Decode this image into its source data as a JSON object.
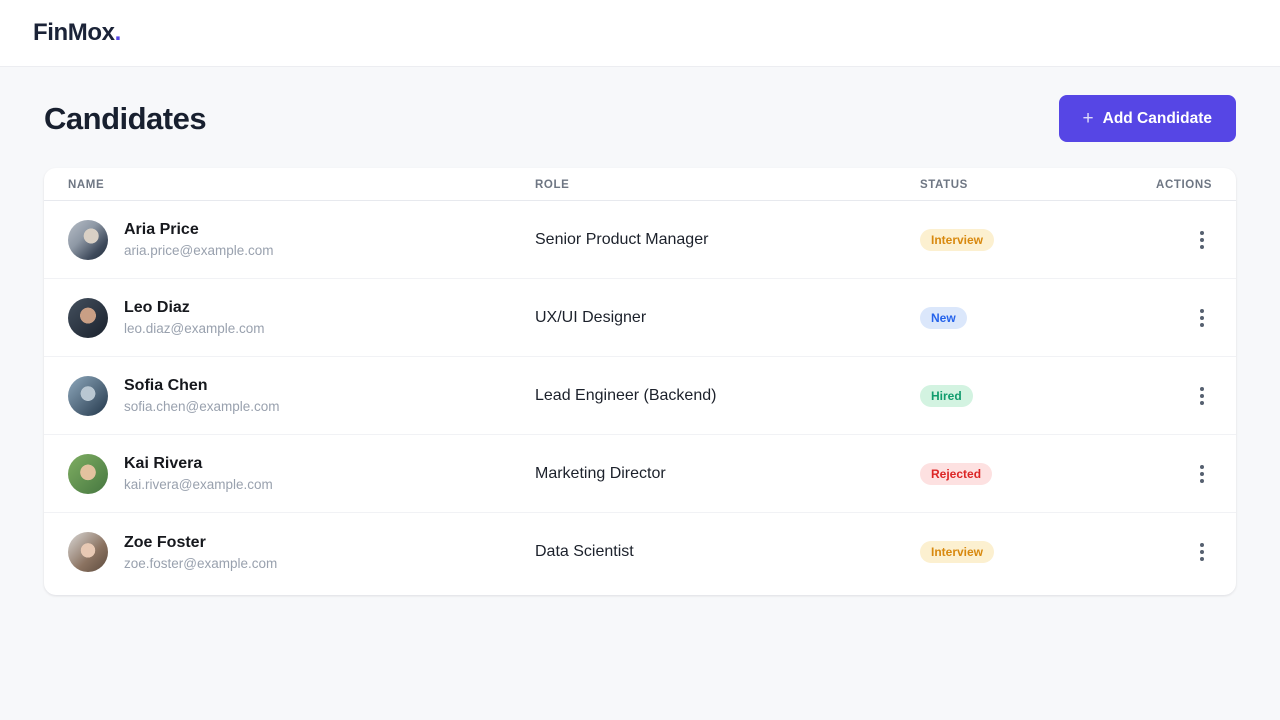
{
  "brand": {
    "name": "FinMox",
    "dot": "."
  },
  "page": {
    "title": "Candidates"
  },
  "toolbar": {
    "add_button_label": "Add Candidate",
    "add_button_icon": "plus-icon",
    "plus_glyph": "+"
  },
  "colors": {
    "accent": "#5646e5",
    "page_background": "#f7f8fa",
    "status": {
      "interview": {
        "bg": "#fcf0d0",
        "text": "#d8890f"
      },
      "new": {
        "bg": "#dbe7fb",
        "text": "#2563eb"
      },
      "hired": {
        "bg": "#d3f3e1",
        "text": "#119c6d"
      },
      "rejected": {
        "bg": "#fde1e1",
        "text": "#dc2626"
      }
    }
  },
  "table": {
    "columns": [
      "NAME",
      "ROLE",
      "STATUS",
      "ACTIONS"
    ],
    "rows": [
      {
        "name": "Aria Price",
        "email": "aria.price@example.com",
        "role": "Senior Product Manager",
        "status": "Interview"
      },
      {
        "name": "Leo Diaz",
        "email": "leo.diaz@example.com",
        "role": "UX/UI Designer",
        "status": "New"
      },
      {
        "name": "Sofia Chen",
        "email": "sofia.chen@example.com",
        "role": "Lead Engineer (Backend)",
        "status": "Hired"
      },
      {
        "name": "Kai Rivera",
        "email": "kai.rivera@example.com",
        "role": "Marketing Director",
        "status": "Rejected"
      },
      {
        "name": "Zoe Foster",
        "email": "zoe.foster@example.com",
        "role": "Data Scientist",
        "status": "Interview"
      }
    ]
  }
}
